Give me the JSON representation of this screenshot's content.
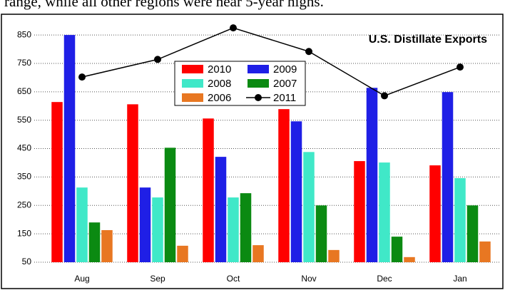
{
  "caption": "range, while all other regions were near 5-year highs.",
  "chart_data": {
    "type": "bar",
    "title": "U.S. Distillate Exports",
    "categories": [
      "Aug",
      "Sep",
      "Oct",
      "Nov",
      "Dec",
      "Jan"
    ],
    "series": [
      {
        "name": "2010",
        "color": "#ff0000",
        "values": [
          614,
          606,
          556,
          589,
          406,
          391
        ]
      },
      {
        "name": "2009",
        "color": "#1f1fe6",
        "values": [
          850,
          313,
          421,
          546,
          664,
          649
        ]
      },
      {
        "name": "2008",
        "color": "#40e8c8",
        "values": [
          313,
          278,
          278,
          438,
          401,
          346
        ]
      },
      {
        "name": "2007",
        "color": "#0b8a12",
        "values": [
          190,
          453,
          293,
          250,
          140,
          250
        ]
      },
      {
        "name": "2006",
        "color": "#e87722",
        "values": [
          163,
          108,
          110,
          93,
          68,
          123
        ]
      },
      {
        "name": "2011",
        "color": "#000000",
        "type": "line",
        "values": [
          702,
          764,
          875,
          792,
          636,
          737
        ]
      }
    ],
    "ylim": [
      50,
      918
    ],
    "yticks": [
      50,
      150,
      250,
      350,
      450,
      550,
      650,
      750,
      850
    ],
    "grid": true
  }
}
